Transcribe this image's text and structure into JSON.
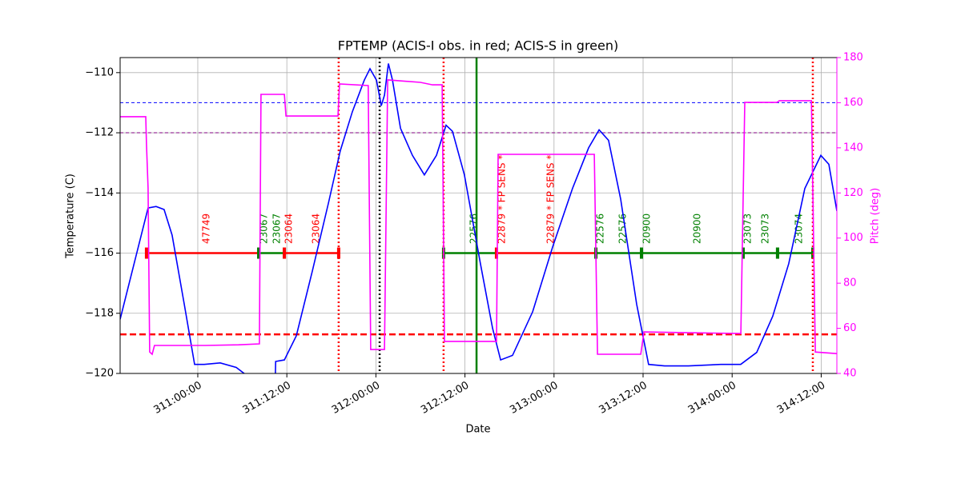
{
  "chart_data": {
    "type": "line",
    "title": "FPTEMP (ACIS-I obs. in red; ACIS-S in green)",
    "x_label": "Date",
    "y_label": "Temperature (C)",
    "y2_label": "Pitch (deg)",
    "xlim": [
      310.564,
      314.588
    ],
    "xticks": [
      {
        "value": 311,
        "label": "311:00:00"
      },
      {
        "value": 311.5,
        "label": "311:12:00"
      },
      {
        "value": 312,
        "label": "312:00:00"
      },
      {
        "value": 312.5,
        "label": "312:12:00"
      },
      {
        "value": 313,
        "label": "313:00:00"
      },
      {
        "value": 313.5,
        "label": "313:12:00"
      },
      {
        "value": 314,
        "label": "314:00:00"
      },
      {
        "value": 314.5,
        "label": "314:12:00"
      }
    ],
    "ylim": [
      -120,
      -109.5
    ],
    "yticks": [
      {
        "value": -120,
        "label": "−120"
      },
      {
        "value": -118,
        "label": "−118"
      },
      {
        "value": -116,
        "label": "−116"
      },
      {
        "value": -114,
        "label": "−114"
      },
      {
        "value": -112,
        "label": "−112"
      },
      {
        "value": -110,
        "label": "−110"
      }
    ],
    "y2lim": [
      40,
      180
    ],
    "y2ticks": [
      40,
      60,
      80,
      100,
      120,
      140,
      160,
      180
    ],
    "grid": true,
    "series": [
      {
        "name": "FPTEMP",
        "color": "#0000ff",
        "axis": "y",
        "x": [
          310.564,
          310.721,
          310.766,
          310.811,
          310.856,
          310.924,
          310.982,
          311.036,
          311.126,
          311.216,
          311.283,
          311.328,
          311.436,
          311.437,
          311.486,
          311.553,
          311.643,
          311.733,
          311.8,
          311.868,
          311.935,
          311.967,
          312.003,
          312.03,
          312.048,
          312.07,
          312.093,
          312.138,
          312.205,
          312.272,
          312.34,
          312.394,
          312.43,
          312.497,
          312.587,
          312.655,
          312.7,
          312.767,
          312.88,
          312.992,
          313.104,
          313.194,
          313.253,
          313.306,
          313.374,
          313.464,
          313.531,
          313.621,
          313.755,
          313.936,
          314.048,
          314.138,
          314.228,
          314.318,
          314.408,
          314.498,
          314.543,
          314.588
        ],
        "values": [
          -118.2,
          -114.5,
          -114.45,
          -114.55,
          -115.4,
          -117.7,
          -119.7,
          -119.7,
          -119.65,
          -119.8,
          -120.1,
          -120.3,
          -120,
          -119.6,
          -119.55,
          -118.75,
          -116.6,
          -114.35,
          -112.6,
          -111.3,
          -110.25,
          -109.87,
          -110.25,
          -111.1,
          -110.75,
          -109.7,
          -110.25,
          -111.85,
          -112.75,
          -113.4,
          -112.75,
          -111.75,
          -111.95,
          -113.4,
          -116.35,
          -118.5,
          -119.55,
          -119.4,
          -117.95,
          -115.8,
          -113.85,
          -112.5,
          -111.9,
          -112.25,
          -114.2,
          -117.7,
          -119.7,
          -119.75,
          -119.75,
          -119.7,
          -119.7,
          -119.3,
          -118.1,
          -116.35,
          -113.85,
          -112.75,
          -113.05,
          -114.6
        ]
      },
      {
        "name": "Pitch",
        "color": "#ff00ff",
        "axis": "y2",
        "x": [
          310.564,
          310.708,
          310.712,
          310.721,
          310.73,
          310.744,
          310.757,
          311.04,
          311.229,
          311.346,
          311.355,
          311.486,
          311.495,
          311.787,
          311.796,
          311.957,
          311.971,
          312.048,
          312.066,
          312.25,
          312.318,
          312.372,
          312.385,
          312.677,
          312.686,
          313.226,
          313.244,
          313.487,
          313.505,
          314.049,
          314.071,
          314.251,
          314.265,
          314.445,
          314.467,
          314.588
        ],
        "values": [
          153.8,
          153.8,
          141.7,
          122.2,
          49.5,
          48.5,
          52.4,
          52.4,
          52.7,
          53.1,
          163.7,
          163.7,
          154.1,
          154.1,
          168.3,
          167.6,
          50.6,
          50.6,
          170.1,
          169,
          167.9,
          167.9,
          54.2,
          54.2,
          137.1,
          137.1,
          48.5,
          48.5,
          58.4,
          57.7,
          160.1,
          160.1,
          160.9,
          160.9,
          49.5,
          48.8
        ]
      }
    ],
    "hlines": [
      {
        "value": -111,
        "color": "#0000ff",
        "style": "dashed"
      },
      {
        "value": -112,
        "color": "#800080",
        "style": "dashed"
      },
      {
        "value": -118.7,
        "color": "#ff0000",
        "style": "bold-dashed"
      }
    ],
    "vlines": [
      {
        "x": 311.791,
        "color": "#ff0000",
        "style": "dotted"
      },
      {
        "x": 312.021,
        "color": "#000000",
        "style": "dotted"
      },
      {
        "x": 312.38,
        "color": "#ff0000",
        "style": "dotted"
      },
      {
        "x": 312.565,
        "color": "#008000",
        "style": "solid"
      },
      {
        "x": 314.453,
        "color": "#ff0000",
        "style": "dotted"
      }
    ],
    "obs_level": -116,
    "observations": [
      {
        "start": 310.712,
        "end": 311.342,
        "color": "#ff0000"
      },
      {
        "start": 311.342,
        "end": 311.486,
        "color": "#008000"
      },
      {
        "start": 311.486,
        "end": 311.791,
        "color": "#ff0000"
      },
      {
        "start": 312.38,
        "end": 312.677,
        "color": "#008000"
      },
      {
        "start": 312.677,
        "end": 313.235,
        "color": "#ff0000"
      },
      {
        "start": 313.235,
        "end": 313.491,
        "color": "#008000"
      },
      {
        "start": 313.491,
        "end": 314.062,
        "color": "#008000"
      },
      {
        "start": 314.062,
        "end": 314.255,
        "color": "#008000"
      },
      {
        "start": 314.255,
        "end": 314.453,
        "color": "#008000"
      }
    ],
    "obs_labels": [
      {
        "x": 311.049,
        "text": "47749",
        "color": "#ff0000"
      },
      {
        "x": 311.373,
        "text": "23067",
        "color": "#008000"
      },
      {
        "x": 311.445,
        "text": "23067",
        "color": "#008000"
      },
      {
        "x": 311.513,
        "text": "23064",
        "color": "#ff0000"
      },
      {
        "x": 311.665,
        "text": "23064",
        "color": "#ff0000"
      },
      {
        "x": 312.551,
        "text": "22576",
        "color": "#008000"
      },
      {
        "x": 312.709,
        "text": "22879 * FP SENS *",
        "color": "#ff0000"
      },
      {
        "x": 312.983,
        "text": "22879 * FP SENS *",
        "color": "#ff0000"
      },
      {
        "x": 313.262,
        "text": "22576",
        "color": "#008000"
      },
      {
        "x": 313.388,
        "text": "22576",
        "color": "#008000"
      },
      {
        "x": 313.523,
        "text": "20900",
        "color": "#008000"
      },
      {
        "x": 313.806,
        "text": "20900",
        "color": "#008000"
      },
      {
        "x": 314.089,
        "text": "23073",
        "color": "#008000"
      },
      {
        "x": 314.188,
        "text": "23073",
        "color": "#008000"
      },
      {
        "x": 314.377,
        "text": "23074",
        "color": "#008000"
      }
    ]
  }
}
